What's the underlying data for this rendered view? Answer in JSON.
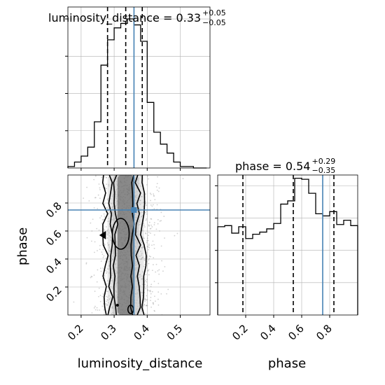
{
  "colors": {
    "truth": "#4682b4",
    "line": "#000000",
    "grid": "#b0b0b0",
    "scatter": "#9a9a9a",
    "density_dark": "#4a4a4a",
    "density_light": "#bdbdbd"
  },
  "chart_data": {
    "type": "corner",
    "grid": true,
    "parameters": [
      "luminosity_distance",
      "phase"
    ],
    "truths": {
      "luminosity_distance": 0.36,
      "phase": 0.75
    },
    "panels": {
      "hist_luminosity_distance": {
        "title_main": "luminosity_distance = 0.33",
        "title_plus": "+0.05",
        "title_minus": "−0.05",
        "xlim": [
          0.16,
          0.59
        ],
        "ylim": [
          0,
          1.08
        ],
        "quantiles": [
          0.28,
          0.335,
          0.385
        ],
        "bin_edges": [
          0.16,
          0.18,
          0.2,
          0.22,
          0.24,
          0.26,
          0.28,
          0.3,
          0.32,
          0.34,
          0.36,
          0.38,
          0.4,
          0.42,
          0.44,
          0.46,
          0.48,
          0.5,
          0.52,
          0.54,
          0.56,
          0.58
        ],
        "counts": [
          0.01,
          0.04,
          0.08,
          0.14,
          0.31,
          0.69,
          0.86,
          0.94,
          0.97,
          1.0,
          0.96,
          0.85,
          0.44,
          0.24,
          0.16,
          0.1,
          0.04,
          0.01,
          0.01,
          0.0,
          0.0
        ]
      },
      "hist_phase": {
        "title_main": "phase = 0.54",
        "title_plus": "+0.29",
        "title_minus": "−0.35",
        "xlim": [
          0.0,
          1.0
        ],
        "ylim": [
          0,
          1.3
        ],
        "quantiles": [
          0.18,
          0.54,
          0.83
        ],
        "bin_edges": [
          0.0,
          0.05,
          0.1,
          0.15,
          0.2,
          0.25,
          0.3,
          0.35,
          0.4,
          0.45,
          0.5,
          0.55,
          0.6,
          0.65,
          0.7,
          0.75,
          0.8,
          0.85,
          0.9,
          0.95,
          1.0
        ],
        "counts": [
          0.82,
          0.83,
          0.76,
          0.82,
          0.71,
          0.75,
          0.77,
          0.8,
          0.85,
          1.03,
          1.06,
          1.27,
          1.26,
          1.13,
          0.94,
          0.92,
          0.96,
          0.84,
          0.88,
          0.83
        ]
      },
      "scatter_2d": {
        "xlim": [
          0.16,
          0.59
        ],
        "ylim": [
          0.0,
          1.0
        ],
        "xticks": [
          0.2,
          0.3,
          0.4,
          0.5
        ],
        "yticks": [
          0.2,
          0.4,
          0.6,
          0.8
        ],
        "x_label": "luminosity_distance",
        "y_label": "phase",
        "note": "dense point cloud centred near luminosity_distance 0.33 with contours"
      },
      "phase_xaxis": {
        "xticks": [
          0.2,
          0.4,
          0.6,
          0.8
        ],
        "x_label": "phase"
      }
    }
  }
}
